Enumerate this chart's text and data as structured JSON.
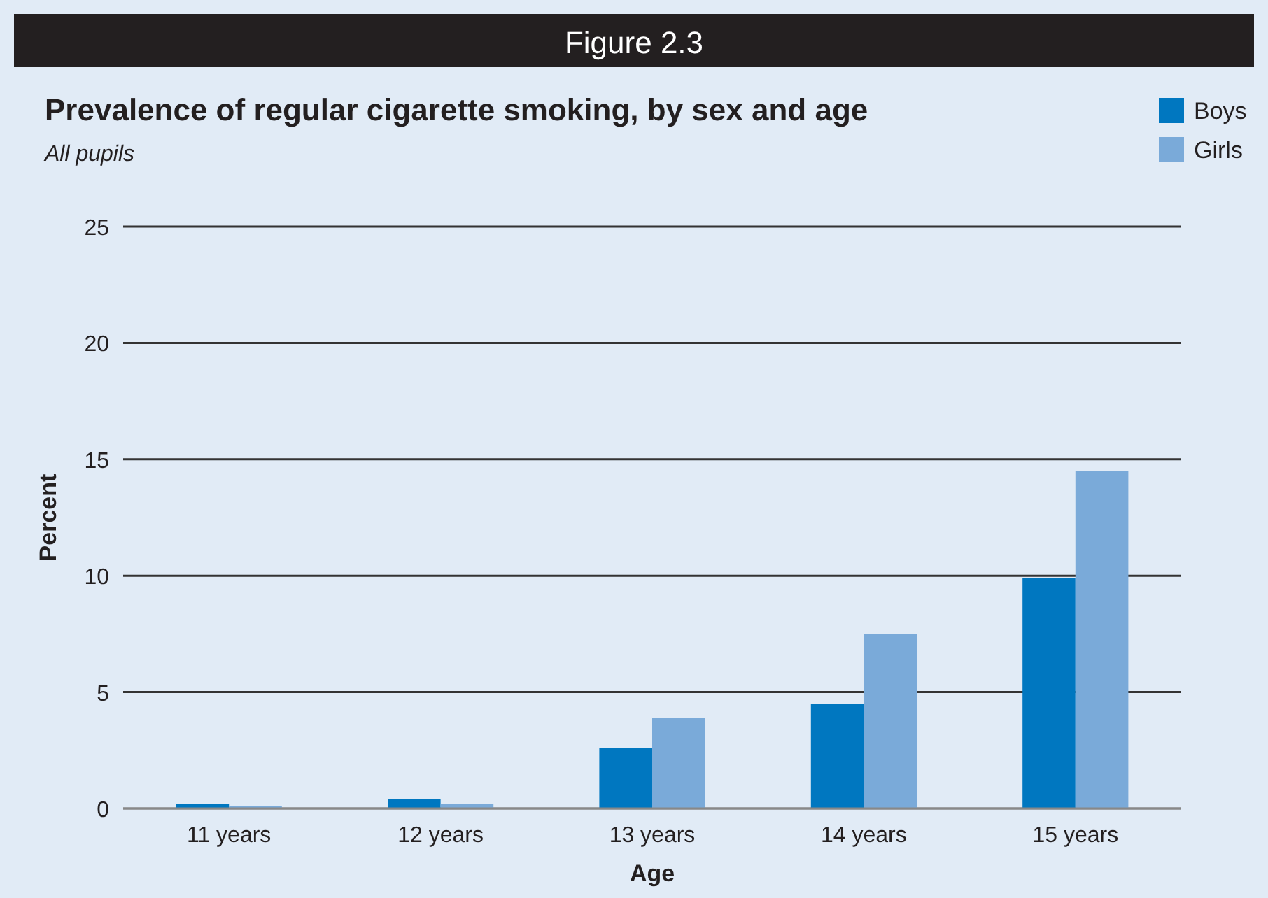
{
  "chart_data": {
    "type": "bar",
    "title": "Prevalence of regular cigarette smoking, by sex and age",
    "subtitle": "All pupils",
    "annotations": [
      "Figure 2.3"
    ],
    "xlabel": "Age",
    "ylabel": "Percent",
    "categories": [
      "11 years",
      "12 years",
      "13 years",
      "14 years",
      "15 years"
    ],
    "series": [
      {
        "name": "Boys",
        "color": "#0077c0",
        "values": [
          0.2,
          0.4,
          2.6,
          4.5,
          9.9
        ]
      },
      {
        "name": "Girls",
        "color": "#7aaad9",
        "values": [
          0.1,
          0.2,
          3.9,
          7.5,
          14.5
        ]
      }
    ],
    "ylim": [
      0,
      25
    ],
    "yticks": [
      0,
      5,
      10,
      15,
      20,
      25
    ],
    "grid": "y",
    "legend": "top right"
  }
}
